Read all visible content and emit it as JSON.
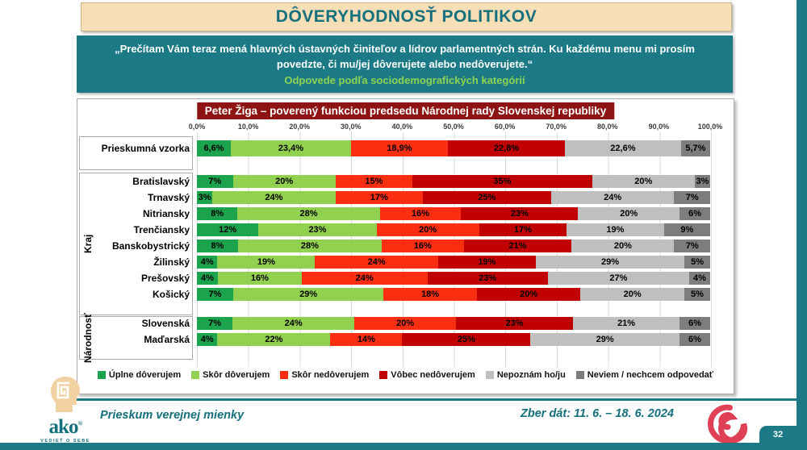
{
  "slide": {
    "title": "DÔVERYHODNOSŤ POLITIKOV",
    "quote": "„Prečítam Vám teraz mená hlavných ústavných činiteľov a lídrov parlamentných strán. Ku každému menu mi prosím povedzte, či mu/jej dôverujete alebo nedôverujete.“",
    "subtitle": "Odpovede podľa sociodemografických kategórií",
    "footer_left": "Prieskum verejnej mienky",
    "footer_right": "Zber dát: 11. 6. – 18. 6. 2024",
    "page_number": "32",
    "logo": {
      "brand": "ako",
      "registered": "®",
      "tagline": "VEDIEŤ O SEBE"
    }
  },
  "chart_data": {
    "type": "bar",
    "stacked": true,
    "orientation": "horizontal",
    "title": "Peter Žiga – poverený funkciou predsedu Národnej rady Slovenskej republiky",
    "xlim": [
      0,
      100
    ],
    "grid": true,
    "legend_position": "bottom",
    "x_ticks": [
      "0,0%",
      "10,0%",
      "20,0%",
      "30,0%",
      "40,0%",
      "50,0%",
      "60,0%",
      "70,0%",
      "80,0%",
      "90,0%",
      "100,0%"
    ],
    "legend": [
      "Úplne dôverujem",
      "Skôr dôverujem",
      "Skôr nedôverujem",
      "Vôbec nedôverujem",
      "Nepoznám ho/ju",
      "Neviem / nechcem odpovedať"
    ],
    "colors": [
      "#1CA34E",
      "#92D050",
      "#FA2E11",
      "#C00000",
      "#BFBFBF",
      "#7D7D7D"
    ],
    "groups": [
      {
        "label": "",
        "rows": [
          {
            "label": "Prieskumná vzorka",
            "values": [
              6.6,
              23.4,
              18.9,
              22.8,
              22.6,
              5.7
            ],
            "display": [
              "6,6%",
              "23,4%",
              "18,9%",
              "22,8%",
              "22,6%",
              "5,7%"
            ]
          }
        ]
      },
      {
        "label": "Kraj",
        "rows": [
          {
            "label": "Bratislavský",
            "values": [
              7,
              20,
              15,
              35,
              20,
              3
            ],
            "display": [
              "7%",
              "20%",
              "15%",
              "35%",
              "20%",
              "3%"
            ]
          },
          {
            "label": "Trnavský",
            "values": [
              3,
              24,
              17,
              25,
              24,
              7
            ],
            "display": [
              "3%",
              "24%",
              "17%",
              "25%",
              "24%",
              "7%"
            ]
          },
          {
            "label": "Nitriansky",
            "values": [
              8,
              28,
              16,
              23,
              20,
              6
            ],
            "display": [
              "8%",
              "28%",
              "16%",
              "23%",
              "20%",
              "6%"
            ]
          },
          {
            "label": "Trenčiansky",
            "values": [
              12,
              23,
              20,
              17,
              19,
              9
            ],
            "display": [
              "12%",
              "23%",
              "20%",
              "17%",
              "19%",
              "9%"
            ]
          },
          {
            "label": "Banskobystrický",
            "values": [
              8,
              28,
              16,
              21,
              20,
              7
            ],
            "display": [
              "8%",
              "28%",
              "16%",
              "21%",
              "20%",
              "7%"
            ]
          },
          {
            "label": "Žilinský",
            "values": [
              4,
              19,
              24,
              19,
              29,
              5
            ],
            "display": [
              "4%",
              "19%",
              "24%",
              "19%",
              "29%",
              "5%"
            ]
          },
          {
            "label": "Prešovský",
            "values": [
              4,
              16,
              24,
              23,
              27,
              4
            ],
            "display": [
              "4%",
              "16%",
              "24%",
              "23%",
              "27%",
              "4%"
            ]
          },
          {
            "label": "Košický",
            "values": [
              7,
              29,
              18,
              20,
              20,
              5
            ],
            "display": [
              "7%",
              "29%",
              "18%",
              "20%",
              "20%",
              "5%"
            ]
          }
        ]
      },
      {
        "label": "Národnosť",
        "rows": [
          {
            "label": "Slovenská",
            "values": [
              7,
              24,
              20,
              23,
              21,
              6
            ],
            "display": [
              "7%",
              "24%",
              "20%",
              "23%",
              "21%",
              "6%"
            ]
          },
          {
            "label": "Maďarská",
            "values": [
              4,
              22,
              14,
              25,
              29,
              6
            ],
            "display": [
              "4%",
              "22%",
              "14%",
              "25%",
              "29%",
              "6%"
            ]
          }
        ]
      }
    ]
  }
}
